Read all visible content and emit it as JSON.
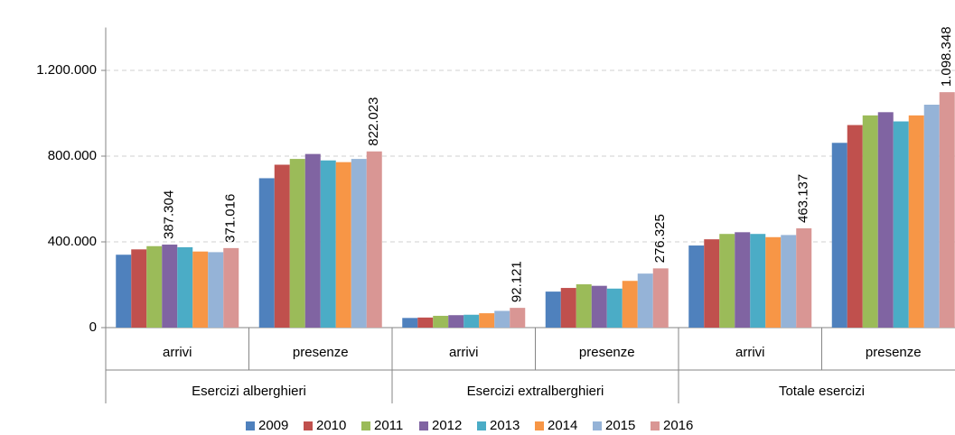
{
  "chart_data": {
    "type": "bar",
    "categories": [
      "arrivi",
      "presenze",
      "arrivi",
      "presenze",
      "arrivi",
      "presenze"
    ],
    "groups": [
      "Esercizi alberghieri",
      "Esercizi extralberghieri",
      "Totale esercizi"
    ],
    "series": [
      {
        "name": "2009",
        "color": "#4f81bd",
        "values": [
          340000,
          697000,
          45000,
          168000,
          383000,
          862000
        ]
      },
      {
        "name": "2010",
        "color": "#c0504d",
        "values": [
          365000,
          760000,
          47000,
          185000,
          412000,
          945000
        ]
      },
      {
        "name": "2011",
        "color": "#9bbb59",
        "values": [
          380000,
          787000,
          55000,
          202000,
          437000,
          990000
        ]
      },
      {
        "name": "2012",
        "color": "#8064a2",
        "values": [
          387304,
          810000,
          58000,
          195000,
          445000,
          1005000
        ],
        "value_labels": [
          "387.304",
          null,
          null,
          null,
          null,
          null
        ]
      },
      {
        "name": "2013",
        "color": "#4bacc6",
        "values": [
          375000,
          780000,
          60000,
          182000,
          437000,
          962000
        ]
      },
      {
        "name": "2014",
        "color": "#f79646",
        "values": [
          355000,
          772000,
          67000,
          218000,
          422000,
          990000
        ]
      },
      {
        "name": "2015",
        "color": "#95b3d7",
        "values": [
          352000,
          787000,
          78000,
          252000,
          432000,
          1040000
        ]
      },
      {
        "name": "2016",
        "color": "#d99694",
        "values": [
          371016,
          822023,
          92121,
          276325,
          463137,
          1098348
        ],
        "value_labels": [
          "371.016",
          "822.023",
          "92.121",
          "276.325",
          "463.137",
          "1.098.348"
        ]
      }
    ],
    "ylim": [
      0,
      1400000
    ],
    "yticks": [
      0,
      {
        "value": 400000,
        "label": "400.000"
      },
      {
        "value": 800000,
        "label": "800.000"
      },
      {
        "value": 1200000,
        "label": "1.200.000"
      }
    ],
    "grid": true,
    "legend": "bottom"
  }
}
